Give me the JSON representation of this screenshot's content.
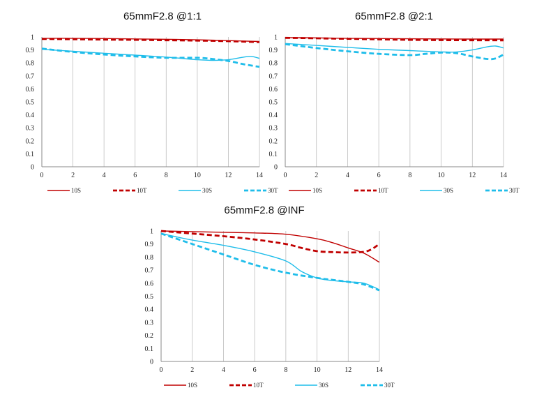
{
  "chart_data": [
    {
      "type": "line",
      "title": "65mmF2.8 @1:1",
      "xlim": [
        0,
        14
      ],
      "ylim": [
        0,
        1
      ],
      "xticks": [
        "0",
        "2",
        "4",
        "6",
        "8",
        "10",
        "12",
        "14"
      ],
      "yticks": [
        "0",
        "0.1",
        "0.2",
        "0.3",
        "0.4",
        "0.5",
        "0.6",
        "0.7",
        "0.8",
        "0.9",
        "1"
      ],
      "grid": "vertical",
      "legend": "bottom",
      "series": [
        {
          "name": "10S",
          "color": "#c00000",
          "style": "solid",
          "x": [
            0,
            2,
            4,
            6,
            8,
            10,
            12,
            14
          ],
          "y": [
            0.99,
            0.99,
            0.988,
            0.985,
            0.982,
            0.978,
            0.972,
            0.965
          ]
        },
        {
          "name": "10T",
          "color": "#c00000",
          "style": "dashed",
          "x": [
            0,
            2,
            4,
            6,
            8,
            10,
            12,
            14
          ],
          "y": [
            0.985,
            0.983,
            0.98,
            0.978,
            0.975,
            0.972,
            0.968,
            0.96
          ]
        },
        {
          "name": "30S",
          "color": "#1fbdea",
          "style": "solid",
          "x": [
            0,
            2,
            4,
            6,
            8,
            10,
            11,
            12,
            13,
            13.5,
            14
          ],
          "y": [
            0.905,
            0.89,
            0.875,
            0.86,
            0.845,
            0.825,
            0.82,
            0.825,
            0.845,
            0.85,
            0.835
          ]
        },
        {
          "name": "30T",
          "color": "#1fbdea",
          "style": "dashed",
          "x": [
            0,
            2,
            4,
            6,
            8,
            10,
            11,
            12,
            13,
            14
          ],
          "y": [
            0.91,
            0.885,
            0.865,
            0.85,
            0.84,
            0.84,
            0.83,
            0.815,
            0.79,
            0.77
          ]
        }
      ]
    },
    {
      "type": "line",
      "title": "65mmF2.8 @2:1",
      "xlim": [
        0,
        14
      ],
      "ylim": [
        0,
        1
      ],
      "xticks": [
        "0",
        "2",
        "4",
        "6",
        "8",
        "10",
        "12",
        "14"
      ],
      "yticks": [
        "0",
        "0.1",
        "0.2",
        "0.3",
        "0.4",
        "0.5",
        "0.6",
        "0.7",
        "0.8",
        "0.9",
        "1"
      ],
      "grid": "vertical",
      "legend": "bottom",
      "series": [
        {
          "name": "10S",
          "color": "#c00000",
          "style": "solid",
          "x": [
            0,
            2,
            4,
            6,
            8,
            10,
            12,
            14
          ],
          "y": [
            0.995,
            0.993,
            0.99,
            0.988,
            0.986,
            0.985,
            0.984,
            0.984
          ]
        },
        {
          "name": "10T",
          "color": "#c00000",
          "style": "dashed",
          "x": [
            0,
            2,
            4,
            6,
            8,
            10,
            12,
            14
          ],
          "y": [
            0.993,
            0.99,
            0.986,
            0.982,
            0.978,
            0.976,
            0.975,
            0.974
          ]
        },
        {
          "name": "30S",
          "color": "#1fbdea",
          "style": "solid",
          "x": [
            0,
            2,
            4,
            6,
            8,
            10,
            11,
            12,
            13,
            13.5,
            14
          ],
          "y": [
            0.95,
            0.935,
            0.92,
            0.905,
            0.895,
            0.885,
            0.885,
            0.9,
            0.925,
            0.93,
            0.915
          ]
        },
        {
          "name": "30T",
          "color": "#1fbdea",
          "style": "dashed",
          "x": [
            0,
            2,
            4,
            6,
            8,
            9,
            10,
            11,
            12,
            13,
            13.5,
            14
          ],
          "y": [
            0.945,
            0.915,
            0.89,
            0.87,
            0.86,
            0.87,
            0.88,
            0.875,
            0.85,
            0.83,
            0.835,
            0.865
          ]
        }
      ]
    },
    {
      "type": "line",
      "title": "65mmF2.8 @INF",
      "xlim": [
        0,
        14
      ],
      "ylim": [
        0,
        1
      ],
      "xticks": [
        "0",
        "2",
        "4",
        "6",
        "8",
        "10",
        "12",
        "14"
      ],
      "yticks": [
        "0",
        "0.1",
        "0.2",
        "0.3",
        "0.4",
        "0.5",
        "0.6",
        "0.7",
        "0.8",
        "0.9",
        "1"
      ],
      "grid": "vertical",
      "legend": "bottom",
      "series": [
        {
          "name": "10S",
          "color": "#c00000",
          "style": "solid",
          "x": [
            0,
            2,
            4,
            6,
            8,
            10,
            11,
            12,
            13,
            14
          ],
          "y": [
            1.0,
            0.995,
            0.99,
            0.985,
            0.975,
            0.94,
            0.91,
            0.87,
            0.83,
            0.76
          ]
        },
        {
          "name": "10T",
          "color": "#c00000",
          "style": "dashed",
          "x": [
            0,
            2,
            4,
            6,
            8,
            9,
            10,
            11,
            12,
            13,
            13.5,
            14
          ],
          "y": [
            1.0,
            0.98,
            0.96,
            0.935,
            0.9,
            0.87,
            0.845,
            0.838,
            0.835,
            0.84,
            0.86,
            0.9
          ]
        },
        {
          "name": "30S",
          "color": "#1fbdea",
          "style": "solid",
          "x": [
            0,
            2,
            4,
            6,
            8,
            9,
            10,
            11,
            12,
            13,
            14
          ],
          "y": [
            0.98,
            0.93,
            0.89,
            0.84,
            0.77,
            0.69,
            0.64,
            0.62,
            0.61,
            0.6,
            0.55
          ]
        },
        {
          "name": "30T",
          "color": "#1fbdea",
          "style": "dashed",
          "x": [
            0,
            2,
            4,
            6,
            8,
            10,
            11,
            12,
            13,
            14
          ],
          "y": [
            0.98,
            0.9,
            0.82,
            0.74,
            0.68,
            0.64,
            0.625,
            0.61,
            0.59,
            0.545
          ]
        }
      ]
    }
  ]
}
